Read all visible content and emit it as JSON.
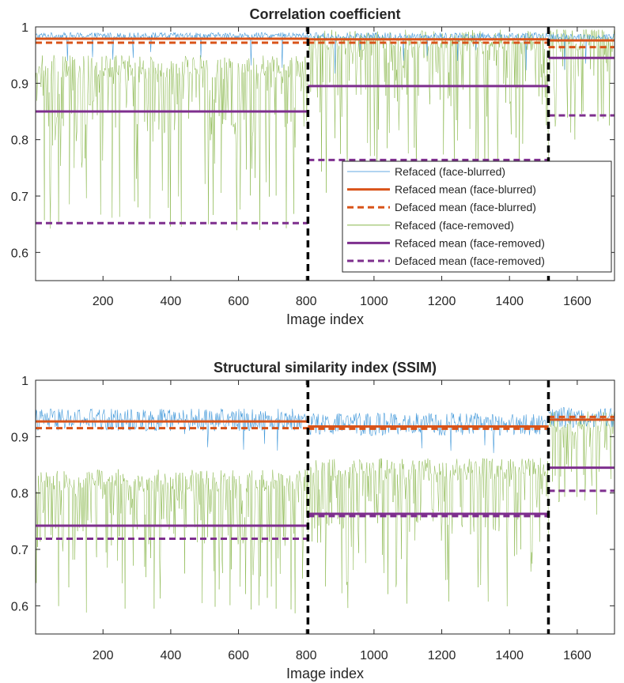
{
  "chart_data": [
    {
      "type": "line",
      "title": "Correlation coefficient",
      "xlabel": "Image index",
      "ylabel": "",
      "xlim": [
        1,
        1710
      ],
      "ylim": [
        0.55,
        1.0
      ],
      "xticks": [
        200,
        400,
        600,
        800,
        1000,
        1200,
        1400,
        1600
      ],
      "xtick_labels": [
        "200",
        "400",
        "600",
        "800",
        "1000",
        "1200",
        "1400",
        "1600"
      ],
      "yticks": [
        0.6,
        0.7,
        0.8,
        0.9,
        1.0
      ],
      "ytick_labels": [
        "0.6",
        "0.7",
        "0.8",
        "0.9",
        "1"
      ],
      "dividers": [
        805,
        1515
      ],
      "segments": [
        [
          1,
          805
        ],
        [
          805,
          1515
        ],
        [
          1515,
          1710
        ]
      ],
      "series": [
        {
          "name": "Refaced (face-blurred)",
          "color": "#2f8ed6",
          "style": "thin",
          "segment_levels": [
            0.984,
            0.983,
            0.982
          ],
          "segment_noise": [
            0.006,
            0.007,
            0.006
          ]
        },
        {
          "name": "Refaced mean (face-blurred)",
          "color": "#d95319",
          "style": "solid",
          "values": [
            0.979,
            0.978,
            0.976
          ]
        },
        {
          "name": "Defaced mean (face-blurred)",
          "color": "#d95319",
          "style": "dashed",
          "values": [
            0.972,
            0.972,
            0.964
          ]
        },
        {
          "name": "Refaced (face-removed)",
          "color": "#77ac30",
          "style": "thin",
          "segment_levels": [
            0.85,
            0.895,
            0.945
          ],
          "segment_min": [
            0.636,
            0.7,
            0.8
          ]
        },
        {
          "name": "Refaced mean (face-removed)",
          "color": "#7e2f8e",
          "style": "solid",
          "values": [
            0.85,
            0.895,
            0.945
          ]
        },
        {
          "name": "Defaced mean (face-removed)",
          "color": "#7e2f8e",
          "style": "dashed",
          "values": [
            0.652,
            0.764,
            0.843
          ]
        }
      ],
      "legend": "inside-lower-right"
    },
    {
      "type": "line",
      "title": "Structural similarity index (SSIM)",
      "xlabel": "Image index",
      "ylabel": "",
      "xlim": [
        1,
        1710
      ],
      "ylim": [
        0.55,
        1.0
      ],
      "xticks": [
        200,
        400,
        600,
        800,
        1000,
        1200,
        1400,
        1600
      ],
      "xtick_labels": [
        "200",
        "400",
        "600",
        "800",
        "1000",
        "1200",
        "1400",
        "1600"
      ],
      "yticks": [
        0.6,
        0.7,
        0.8,
        0.9,
        1.0
      ],
      "ytick_labels": [
        "0.6",
        "0.7",
        "0.8",
        "0.9",
        "1"
      ],
      "dividers": [
        805,
        1515
      ],
      "segments": [
        [
          1,
          805
        ],
        [
          805,
          1515
        ],
        [
          1515,
          1710
        ]
      ],
      "series": [
        {
          "name": "Refaced (face-blurred)",
          "color": "#2f8ed6",
          "style": "thin",
          "segment_levels": [
            0.93,
            0.922,
            0.934
          ],
          "segment_noise": [
            0.02,
            0.02,
            0.018
          ]
        },
        {
          "name": "Refaced mean (face-blurred)",
          "color": "#d95319",
          "style": "solid",
          "values": [
            0.927,
            0.918,
            0.93
          ]
        },
        {
          "name": "Defaced mean (face-blurred)",
          "color": "#d95319",
          "style": "dashed",
          "values": [
            0.915,
            0.914,
            0.935
          ]
        },
        {
          "name": "Refaced (face-removed)",
          "color": "#77ac30",
          "style": "thin",
          "segment_levels": [
            0.742,
            0.762,
            0.845
          ],
          "segment_min": [
            0.578,
            0.592,
            0.72
          ]
        },
        {
          "name": "Refaced mean (face-removed)",
          "color": "#7e2f8e",
          "style": "solid",
          "values": [
            0.742,
            0.763,
            0.845
          ]
        },
        {
          "name": "Defaced mean (face-removed)",
          "color": "#7e2f8e",
          "style": "dashed",
          "values": [
            0.719,
            0.759,
            0.804
          ]
        }
      ]
    }
  ]
}
